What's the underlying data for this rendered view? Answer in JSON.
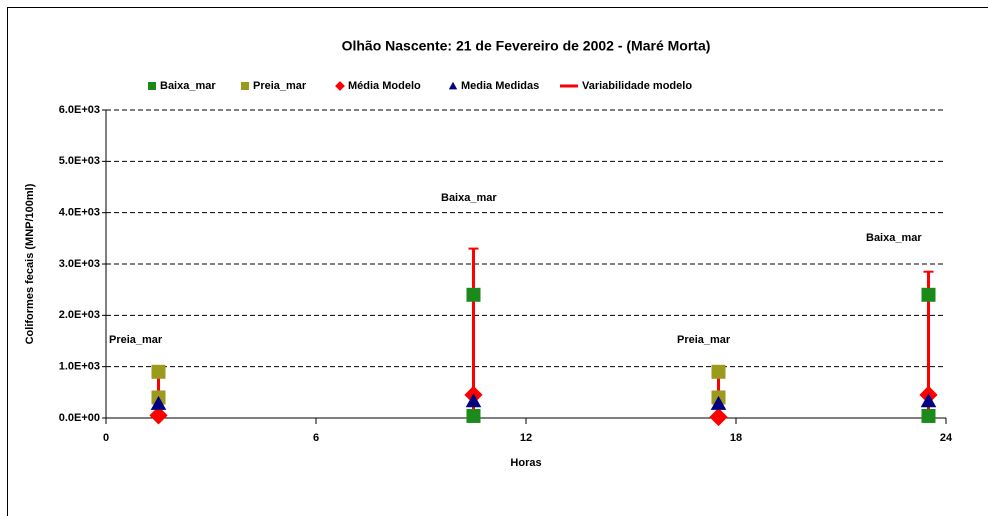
{
  "chart_data": {
    "type": "scatter",
    "title": "Olhão Nascente: 21 de Fevereiro de 2002 - (Maré Morta)",
    "x_label": "Horas",
    "y_label": "Coliformes fecais (MNP/100ml)",
    "xlim": [
      0,
      24
    ],
    "xticks": [
      0,
      6,
      12,
      18,
      24
    ],
    "ylim": [
      0,
      6000
    ],
    "yticks": [
      {
        "value": 0,
        "label": "0.0E+00"
      },
      {
        "value": 1000,
        "label": "1.0E+03"
      },
      {
        "value": 2000,
        "label": "2.0E+03"
      },
      {
        "value": 3000,
        "label": "3.0E+03"
      },
      {
        "value": 4000,
        "label": "4.0E+03"
      },
      {
        "value": 5000,
        "label": "5.0E+03"
      },
      {
        "value": 6000,
        "label": "6.0E+03"
      }
    ],
    "grid": true,
    "legend": "top",
    "annotations": [
      "Preia_mar",
      "Baixa_mar",
      "Preia_mar",
      "Baixa_mar"
    ],
    "series": [
      {
        "name": "Baixa_mar",
        "color": "#1b8a1b",
        "marker": "square",
        "x": [
          10.5,
          10.5,
          23.5,
          23.5
        ],
        "values": [
          2400,
          40,
          2400,
          40
        ]
      },
      {
        "name": "Preia_mar",
        "color": "#9c9a1c",
        "marker": "square",
        "x": [
          1.5,
          1.5,
          17.5,
          17.5
        ],
        "values": [
          900,
          400,
          900,
          400
        ]
      },
      {
        "name": "Média Modelo",
        "color": "#ff0000",
        "marker": "diamond",
        "x": [
          1.5,
          10.5,
          17.5,
          23.5
        ],
        "values": [
          50,
          450,
          20,
          450
        ]
      },
      {
        "name": "Media Medidas",
        "color": "#000080",
        "marker": "triangle",
        "x": [
          1.5,
          10.5,
          17.5,
          23.5
        ],
        "values": [
          280,
          330,
          280,
          330
        ]
      },
      {
        "name": "Variabilidade modelo",
        "color": "#ff0000",
        "marker": "range",
        "x": [
          1.5,
          10.5,
          17.5,
          23.5
        ],
        "low": [
          0,
          0,
          0,
          0
        ],
        "high": [
          900,
          3300,
          900,
          2850
        ]
      }
    ]
  }
}
